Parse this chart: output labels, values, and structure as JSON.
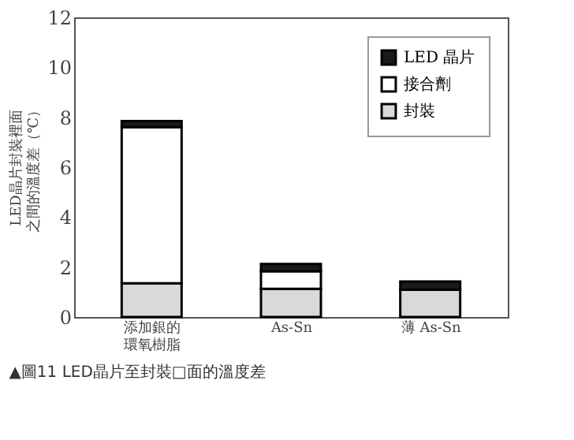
{
  "chart_data": {
    "type": "bar",
    "title": "▲圖11 LED晶片至封裝□面的溫度差",
    "ylabel": "LED晶片封裝裡面之間的溫度差（℃）",
    "categories": [
      "添加銀的環氧樹脂",
      "As-Sn",
      "薄 As-Sn"
    ],
    "stacked": true,
    "series": [
      {
        "name": "封裝",
        "color": "#d9d9d9",
        "values": [
          1.35,
          1.13,
          1.09
        ]
      },
      {
        "name": "接合劑",
        "color": "#ffffff",
        "values": [
          6.25,
          0.7,
          0
        ]
      },
      {
        "name": "LED 晶片",
        "color": "#1a1a1a",
        "values": [
          0.25,
          0.29,
          0.33
        ]
      }
    ],
    "ylim": [
      0,
      12
    ],
    "yticks": [
      0,
      2,
      4,
      6,
      8,
      10,
      12
    ],
    "grid": false,
    "legend": "top right"
  }
}
